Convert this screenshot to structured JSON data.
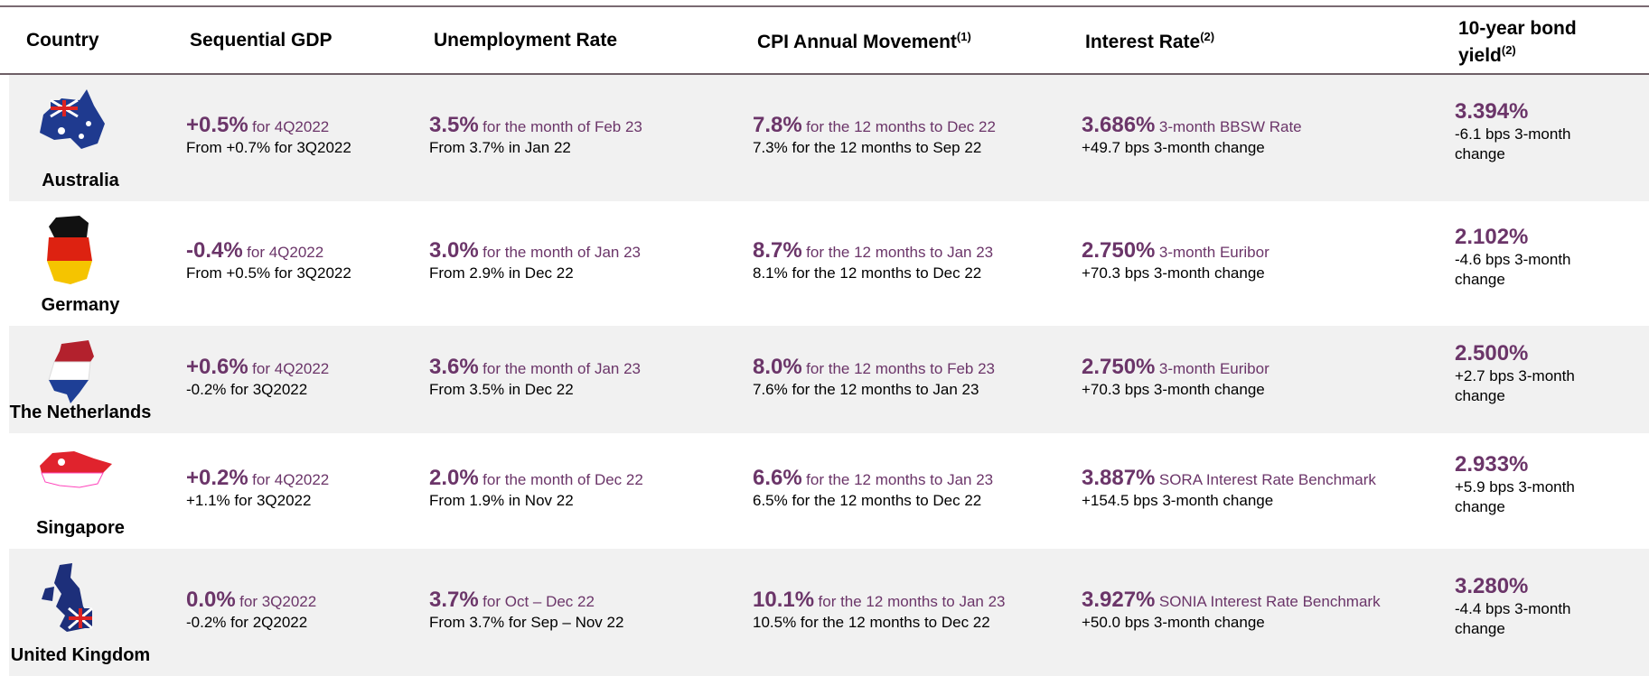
{
  "table": {
    "headers": [
      {
        "text": "Country"
      },
      {
        "text": "Sequential GDP"
      },
      {
        "text": "Unemployment Rate"
      },
      {
        "text": "CPI Annual Movement",
        "note": "(1)"
      },
      {
        "text": "Interest Rate",
        "note": "(2)"
      },
      {
        "text": "10-year bond yield",
        "note": "(2)"
      }
    ],
    "rows": [
      {
        "country": "Australia",
        "cells": [
          {
            "value": "+0.5%",
            "desc": "for 4Q2022",
            "change": "From +0.7% for 3Q2022"
          },
          {
            "value": "3.5%",
            "desc": "for the month of Feb 23",
            "change": "From 3.7% in Jan 22"
          },
          {
            "value": "7.8%",
            "desc": "for the 12 months to Dec 22",
            "change": "7.3% for the 12 months to Sep 22"
          },
          {
            "value": "3.686%",
            "desc": "3-month BBSW Rate",
            "change": "+49.7 bps 3-month change"
          },
          {
            "value": "3.394%",
            "change": "-6.1 bps 3-month change"
          }
        ]
      },
      {
        "country": "Germany",
        "cells": [
          {
            "value": "-0.4%",
            "desc": "for 4Q2022",
            "change": "From +0.5% for 3Q2022"
          },
          {
            "value": "3.0%",
            "desc": "for the month of Jan 23",
            "change": "From 2.9% in Dec 22"
          },
          {
            "value": "8.7%",
            "desc": "for the 12 months to Jan 23",
            "change": "8.1% for the 12 months to Dec 22"
          },
          {
            "value": "2.750%",
            "desc": "3-month Euribor",
            "change": "+70.3 bps 3-month change"
          },
          {
            "value": "2.102%",
            "change": "-4.6 bps 3-month change"
          }
        ]
      },
      {
        "country": "The Netherlands",
        "cells": [
          {
            "value": "+0.6%",
            "desc": "for 4Q2022",
            "change": "-0.2% for 3Q2022"
          },
          {
            "value": "3.6%",
            "desc": "for the month of Jan 23",
            "change": "From 3.5% in Dec 22"
          },
          {
            "value": "8.0%",
            "desc": "for the 12 months to Feb 23",
            "change": "7.6% for the 12 months to Jan 23"
          },
          {
            "value": "2.750%",
            "desc": "3-month Euribor",
            "change": "+70.3 bps 3-month change"
          },
          {
            "value": "2.500%",
            "change": "+2.7 bps 3-month change"
          }
        ]
      },
      {
        "country": "Singapore",
        "cells": [
          {
            "value": "+0.2%",
            "desc": "for 4Q2022",
            "change": "+1.1% for 3Q2022"
          },
          {
            "value": "2.0%",
            "desc": "for the month of Dec 22",
            "change": "From 1.9% in Nov 22"
          },
          {
            "value": "6.6%",
            "desc": "for the 12 months to Jan 23",
            "change": "6.5% for the 12 months to Dec 22"
          },
          {
            "value": "3.887%",
            "desc": "SORA Interest Rate Benchmark",
            "change": "+154.5 bps 3-month change"
          },
          {
            "value": "2.933%",
            "change": "+5.9 bps 3-month change"
          }
        ]
      },
      {
        "country": "United Kingdom",
        "cells": [
          {
            "value": "0.0%",
            "desc": "for 3Q2022",
            "change": "-0.2% for 2Q2022"
          },
          {
            "value": "3.7%",
            "desc": "for Oct – Dec 22",
            "change": "From 3.7% for Sep – Nov 22"
          },
          {
            "value": "10.1%",
            "desc": "for the 12 months to Jan 23",
            "change": "10.5% for the 12 months to Dec 22"
          },
          {
            "value": "3.927%",
            "desc": "SONIA Interest Rate Benchmark",
            "change": "+50.0 bps 3-month change"
          },
          {
            "value": "3.280%",
            "change": "-4.4 bps 3-month change"
          }
        ]
      }
    ]
  }
}
